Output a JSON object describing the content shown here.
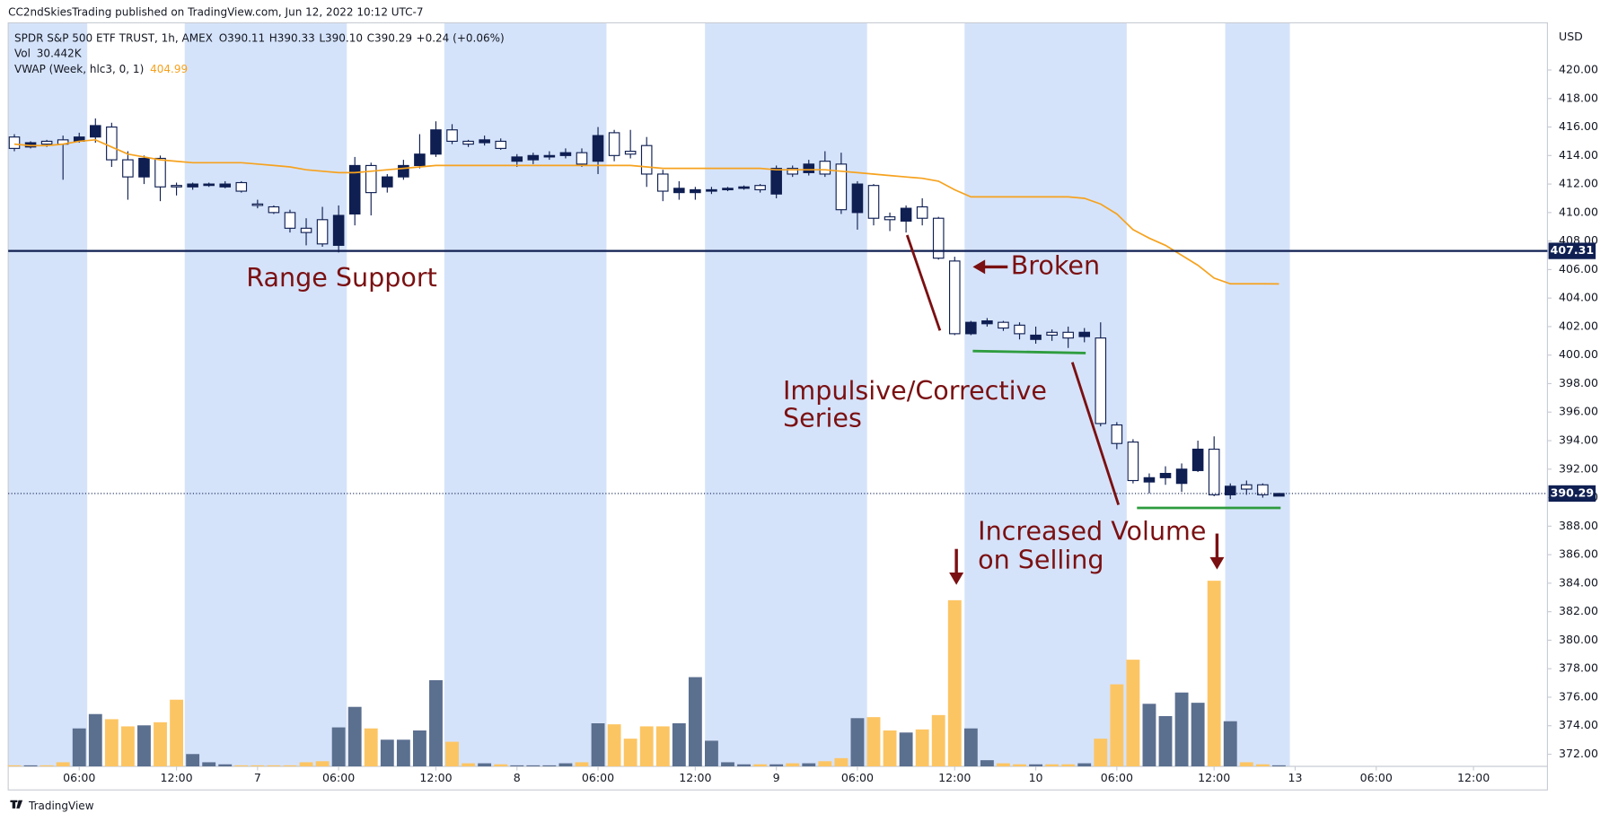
{
  "chart_data": {
    "type": "candlestick",
    "published": "CC2ndSkiesTrading published on TradingView.com, Jun 12, 2022 10:12 UTC-7",
    "symbol": "SPDR S&P 500 ETF TRUST, 1h, AMEX",
    "ohlc_text": [
      "O390.11",
      "H390.33",
      "L390.10",
      "C390.29",
      "+0.24 (+0.06%)"
    ],
    "volume_title": "Vol",
    "volume_text": "30.442K",
    "currency": "USD",
    "brand": "TradingView",
    "up_color": "#0f1f52",
    "down_color": "#ffffff",
    "volume_up_color": "#5b6f8f",
    "volume_down_color": "#fcc563",
    "xlim": [
      -0.38,
      94.56
    ],
    "xticks": [
      {
        "value": 4,
        "label": "06:00"
      },
      {
        "value": 10,
        "label": "12:00"
      },
      {
        "value": 15,
        "label": "7"
      },
      {
        "value": 20,
        "label": "06:00"
      },
      {
        "value": 26,
        "label": "12:00"
      },
      {
        "value": 31,
        "label": "8"
      },
      {
        "value": 36,
        "label": "06:00"
      },
      {
        "value": 42,
        "label": "12:00"
      },
      {
        "value": 47,
        "label": "9"
      },
      {
        "value": 52,
        "label": "06:00"
      },
      {
        "value": 58,
        "label": "12:00"
      },
      {
        "value": 63,
        "label": "10"
      },
      {
        "value": 68,
        "label": "06:00"
      },
      {
        "value": 74,
        "label": "12:00"
      },
      {
        "value": 79,
        "label": "13"
      },
      {
        "value": 84,
        "label": "06:00"
      },
      {
        "value": 90,
        "label": "12:00"
      }
    ],
    "ylim": [
      371.15,
      423.31
    ],
    "yticks": [
      {
        "value": 372,
        "label": "372.00"
      },
      {
        "value": 374,
        "label": "374.00"
      },
      {
        "value": 376,
        "label": "376.00"
      },
      {
        "value": 378,
        "label": "378.00"
      },
      {
        "value": 380,
        "label": "380.00"
      },
      {
        "value": 382,
        "label": "382.00"
      },
      {
        "value": 384,
        "label": "384.00"
      },
      {
        "value": 386,
        "label": "386.00"
      },
      {
        "value": 388,
        "label": "388.00"
      },
      {
        "value": 390,
        "label": "390.00"
      },
      {
        "value": 392,
        "label": "392.00"
      },
      {
        "value": 394,
        "label": "394.00"
      },
      {
        "value": 396,
        "label": "396.00"
      },
      {
        "value": 398,
        "label": "398.00"
      },
      {
        "value": 400,
        "label": "400.00"
      },
      {
        "value": 402,
        "label": "402.00"
      },
      {
        "value": 404,
        "label": "404.00"
      },
      {
        "value": 406,
        "label": "406.00"
      },
      {
        "value": 408,
        "label": "408.00"
      },
      {
        "value": 410,
        "label": "410.00"
      },
      {
        "value": 412,
        "label": "412.00"
      },
      {
        "value": 414,
        "label": "414.00"
      },
      {
        "value": 416,
        "label": "416.00"
      },
      {
        "value": 418,
        "label": "418.00"
      },
      {
        "value": 420,
        "label": "420.00"
      }
    ],
    "open": [
      415.3,
      414.6,
      415.0,
      415.1,
      415.0,
      415.3,
      416.0,
      413.7,
      412.5,
      413.8,
      411.9,
      411.8,
      411.9,
      411.8,
      412.1,
      410.6,
      410.4,
      410.0,
      408.9,
      409.5,
      407.7,
      409.9,
      413.3,
      411.8,
      412.5,
      413.3,
      414.1,
      415.8,
      415.0,
      414.9,
      415.0,
      413.6,
      413.7,
      413.9,
      414.0,
      414.2,
      413.6,
      415.6,
      414.3,
      414.7,
      412.7,
      411.4,
      411.4,
      411.5,
      411.6,
      411.7,
      411.9,
      411.3,
      413.1,
      412.8,
      413.6,
      413.4,
      410.0,
      411.9,
      409.7,
      409.4,
      410.4,
      409.6,
      406.6,
      401.5,
      402.2,
      402.3,
      402.1,
      401.1,
      401.6,
      401.6,
      401.3,
      401.2,
      395.1,
      393.9,
      391.1,
      391.4,
      391.0,
      391.9,
      393.4,
      390.2,
      390.9,
      390.9,
      390.11
    ],
    "high": [
      415.5,
      415.0,
      415.1,
      415.4,
      415.6,
      416.6,
      416.3,
      414.3,
      414.0,
      414.0,
      412.1,
      412.1,
      412.1,
      412.2,
      412.2,
      410.9,
      410.5,
      410.2,
      409.6,
      410.4,
      410.5,
      413.9,
      413.5,
      412.7,
      413.7,
      415.5,
      416.4,
      416.2,
      415.1,
      415.4,
      415.2,
      414.1,
      414.2,
      414.3,
      414.5,
      414.5,
      416.0,
      415.8,
      415.8,
      415.3,
      413.0,
      412.2,
      411.8,
      411.8,
      411.8,
      411.9,
      412.0,
      413.3,
      413.3,
      413.7,
      414.3,
      414.2,
      412.2,
      412.0,
      410.0,
      410.5,
      411.0,
      409.7,
      406.9,
      402.4,
      402.6,
      402.4,
      402.3,
      402.0,
      401.8,
      402.0,
      401.9,
      402.3,
      395.3,
      394.1,
      391.7,
      392.2,
      392.4,
      394.0,
      394.3,
      391.0,
      391.2,
      391.0,
      390.33
    ],
    "low": [
      414.3,
      414.5,
      414.6,
      412.3,
      414.9,
      414.9,
      413.2,
      410.9,
      412.0,
      410.8,
      411.2,
      411.6,
      411.8,
      411.7,
      411.4,
      410.3,
      409.9,
      408.6,
      407.7,
      407.6,
      407.2,
      409.1,
      409.8,
      411.4,
      412.3,
      413.1,
      413.9,
      414.8,
      414.6,
      414.7,
      414.4,
      413.2,
      413.4,
      413.7,
      413.8,
      413.2,
      412.7,
      413.6,
      413.8,
      411.8,
      410.8,
      410.9,
      410.9,
      411.3,
      411.5,
      411.6,
      411.4,
      411.0,
      412.5,
      412.6,
      412.5,
      409.9,
      408.8,
      409.1,
      408.7,
      408.6,
      409.1,
      406.7,
      401.4,
      401.4,
      402.0,
      401.7,
      401.1,
      400.8,
      401.0,
      400.5,
      400.9,
      395.0,
      393.4,
      391.0,
      390.3,
      390.9,
      390.4,
      391.8,
      390.1,
      389.9,
      390.2,
      390.0,
      390.1
    ],
    "close": [
      414.5,
      414.9,
      414.8,
      414.8,
      415.3,
      416.1,
      413.7,
      412.5,
      413.8,
      411.8,
      411.8,
      412.0,
      412.0,
      412.0,
      411.5,
      410.5,
      410.0,
      408.9,
      408.6,
      407.8,
      409.8,
      413.3,
      411.4,
      412.5,
      413.3,
      414.1,
      415.8,
      415.0,
      414.8,
      415.1,
      414.5,
      413.9,
      414.0,
      414.0,
      414.2,
      413.4,
      415.4,
      414.0,
      414.1,
      412.7,
      411.5,
      411.7,
      411.6,
      411.6,
      411.7,
      411.8,
      411.6,
      413.1,
      412.7,
      413.4,
      412.7,
      410.2,
      412.0,
      409.6,
      409.5,
      410.3,
      409.6,
      406.8,
      401.5,
      402.3,
      402.4,
      401.9,
      401.5,
      401.4,
      401.4,
      401.2,
      401.6,
      395.2,
      393.8,
      391.2,
      391.4,
      391.7,
      392.0,
      393.4,
      390.2,
      390.8,
      390.6,
      390.2,
      390.29
    ],
    "volume": [
      30,
      30,
      30,
      120,
      1110,
      1530,
      1380,
      1170,
      1200,
      1290,
      1950,
      360,
      120,
      60,
      30,
      30,
      30,
      30,
      120,
      150,
      1140,
      1740,
      1110,
      780,
      780,
      1050,
      2520,
      720,
      90,
      90,
      60,
      30,
      30,
      30,
      90,
      120,
      1260,
      1230,
      810,
      1170,
      1170,
      1260,
      2610,
      750,
      120,
      60,
      60,
      60,
      90,
      90,
      150,
      240,
      1410,
      1440,
      1050,
      990,
      1080,
      1500,
      4860,
      1110,
      180,
      90,
      60,
      60,
      60,
      60,
      90,
      810,
      2400,
      3120,
      1830,
      1470,
      2160,
      1860,
      5430,
      1320,
      120,
      60,
      30.442
    ],
    "series": [
      {
        "name": "VWAP (Week, hlc3, 0, 1)",
        "color": "#f6a21e",
        "values": [
          414.8,
          414.7,
          414.7,
          414.8,
          415.0,
          415.1,
          414.6,
          414.1,
          413.9,
          413.7,
          413.6,
          413.5,
          413.5,
          413.5,
          413.5,
          413.4,
          413.3,
          413.2,
          413.0,
          412.9,
          412.8,
          412.8,
          412.9,
          413.0,
          413.1,
          413.2,
          413.3,
          413.3,
          413.3,
          413.3,
          413.3,
          413.3,
          413.3,
          413.3,
          413.3,
          413.3,
          413.3,
          413.3,
          413.3,
          413.2,
          413.1,
          413.1,
          413.1,
          413.1,
          413.1,
          413.1,
          413.1,
          413.0,
          413.0,
          413.0,
          413.0,
          412.9,
          412.8,
          412.7,
          412.6,
          412.5,
          412.4,
          412.2,
          411.6,
          411.1,
          411.1,
          411.1,
          411.1,
          411.1,
          411.1,
          411.1,
          411.0,
          410.6,
          409.9,
          408.8,
          408.2,
          407.7,
          407.0,
          406.3,
          405.4,
          405.0,
          405.0,
          405.0,
          404.99
        ]
      }
    ],
    "support": {
      "value": 407.31,
      "color": "#0f1f52"
    },
    "annotations": {
      "range_support": "Range Support",
      "broken": "Broken",
      "impulsive": [
        "Impulsive/Corrective",
        "Series"
      ],
      "increased": [
        "Increased Volume",
        "on Selling"
      ]
    }
  }
}
